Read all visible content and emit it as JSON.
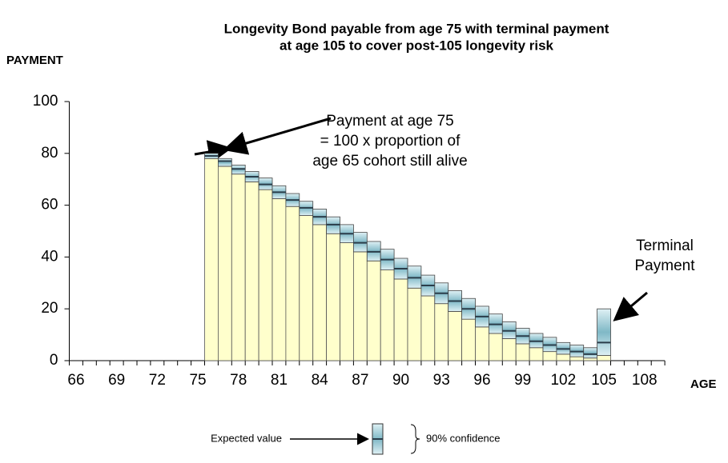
{
  "chart_data": {
    "type": "range-bar",
    "title": [
      "Longevity Bond payable from age 75 with terminal payment",
      "at age 105 to cover post-105 longevity risk"
    ],
    "y_label": "PAYMENT",
    "x_label": "AGE",
    "categories": [
      66,
      null,
      null,
      69,
      null,
      null,
      72,
      null,
      null,
      75,
      null,
      null,
      78,
      null,
      null,
      81,
      null,
      null,
      84,
      null,
      null,
      87,
      null,
      null,
      90,
      null,
      null,
      93,
      null,
      null,
      96,
      null,
      null,
      99,
      null,
      null,
      102,
      null,
      null,
      105,
      null,
      null,
      108,
      null
    ],
    "series": [
      {
        "name": "Expected value",
        "color": "#2a3d4a",
        "values": [
          null,
          null,
          null,
          null,
          null,
          null,
          null,
          null,
          null,
          null,
          79,
          77,
          74,
          71,
          68,
          65,
          62,
          59,
          55.5,
          52.5,
          49,
          45.5,
          42,
          39,
          35.5,
          32,
          29,
          26,
          23,
          20,
          17,
          14,
          11.5,
          9.5,
          7.5,
          6,
          4.5,
          3.5,
          2.5,
          7,
          null,
          null,
          null,
          null
        ]
      },
      {
        "name": "90% confidence",
        "color": "#9fd2dc",
        "low": [
          null,
          null,
          null,
          null,
          null,
          null,
          null,
          null,
          null,
          null,
          78,
          75,
          72,
          69,
          66,
          62.5,
          59.5,
          56,
          52.5,
          49,
          45.5,
          42,
          38.5,
          35,
          31.5,
          28,
          25,
          22,
          19,
          16,
          13,
          10.5,
          8.5,
          6.5,
          5,
          3.5,
          2.5,
          1.5,
          1,
          2,
          null,
          null,
          null,
          null
        ],
        "high": [
          null,
          null,
          null,
          null,
          null,
          null,
          null,
          null,
          null,
          null,
          80,
          78,
          75.5,
          73,
          70.5,
          67.5,
          64.5,
          61.5,
          58.5,
          55.5,
          52.5,
          49.5,
          46,
          43,
          39.5,
          36.5,
          33,
          30,
          27,
          24,
          21,
          18,
          15,
          12.5,
          10.5,
          9,
          7,
          6,
          5,
          20,
          null,
          null,
          null,
          null
        ]
      }
    ],
    "base_color": "#ffffcc",
    "ylim": [
      0,
      100
    ],
    "yticks": [
      0,
      20,
      40,
      60,
      80,
      100
    ],
    "annotations": [
      {
        "lines": [
          "Payment at age 75",
          "= 100 x proportion of",
          "age 65 cohort still alive"
        ]
      },
      {
        "lines": [
          "Terminal",
          "Payment"
        ]
      }
    ]
  }
}
